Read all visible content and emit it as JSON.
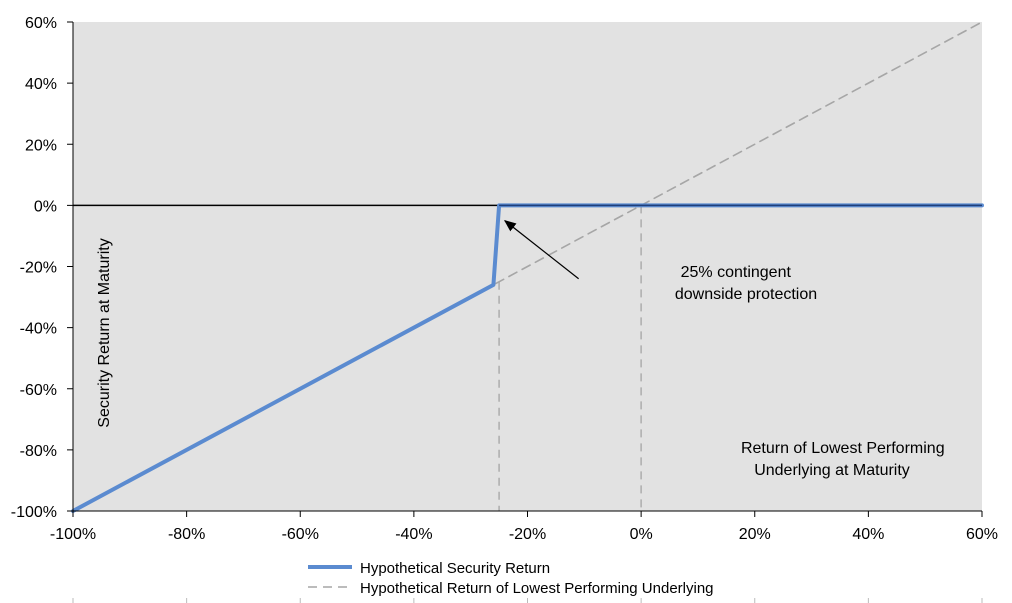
{
  "chart_data": {
    "type": "line",
    "title": "",
    "xlabel": "Return of Lowest Performing Underlying at Maturity",
    "xlabel_lines": [
      "Return of Lowest Performing",
      "Underlying at Maturity"
    ],
    "ylabel": "Security Return at Maturity",
    "xlim": [
      -100,
      60
    ],
    "ylim": [
      -100,
      60
    ],
    "x_ticks": [
      -100,
      -80,
      -60,
      -40,
      -20,
      0,
      20,
      40,
      60
    ],
    "y_ticks": [
      -100,
      -80,
      -60,
      -40,
      -20,
      0,
      20,
      40,
      60
    ],
    "x_tick_labels": [
      "-100%",
      "-80%",
      "-60%",
      "-40%",
      "-20%",
      "0%",
      "20%",
      "40%",
      "60%"
    ],
    "y_tick_labels": [
      "-100%",
      "-80%",
      "-60%",
      "-40%",
      "-20%",
      "0%",
      "20%",
      "40%",
      "60%"
    ],
    "grid": false,
    "plot_background": "#e2e2e2",
    "legend_position": "bottom",
    "series": [
      {
        "name": "Hypothetical Security Return",
        "color": "#5b8bd0",
        "style": "solid",
        "x": [
          -100,
          -26,
          -25,
          60
        ],
        "y": [
          -100,
          -26,
          0,
          0
        ]
      },
      {
        "name": "Hypothetical Return of Lowest Performing Underlying",
        "color": "#a6a6a6",
        "style": "dashed",
        "x": [
          -100,
          60
        ],
        "y": [
          -100,
          60
        ]
      }
    ],
    "reference_lines": [
      {
        "orientation": "horizontal",
        "value": 0,
        "color": "#000000",
        "style": "solid"
      },
      {
        "orientation": "vertical",
        "value": -25,
        "color": "#b0b0b0",
        "style": "dashed"
      },
      {
        "orientation": "vertical",
        "value": 0,
        "color": "#b0b0b0",
        "style": "dashed"
      }
    ],
    "annotation": {
      "lines": [
        "25% contingent",
        "downside protection"
      ],
      "arrow_from": [
        -11,
        -24
      ],
      "arrow_to": [
        -24,
        -5
      ]
    }
  }
}
